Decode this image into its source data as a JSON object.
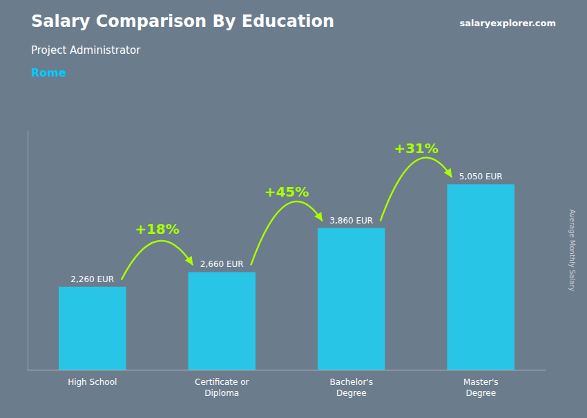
{
  "chart_data": {
    "type": "bar",
    "title": "Salary Comparison By Education",
    "subtitle": "Project Administrator",
    "ylabel": "Average Monthly Salary",
    "categories": [
      "High School",
      "Certificate or\nDiploma",
      "Bachelor's\nDegree",
      "Master's\nDegree"
    ],
    "values": [
      2260,
      2660,
      3860,
      5050
    ],
    "value_labels": [
      "2,260 EUR",
      "2,660 EUR",
      "3,860 EUR",
      "5,050 EUR"
    ],
    "data_labels": true,
    "color": "#29c5e6",
    "ylim": [
      0,
      6500
    ],
    "tick_labels": "x",
    "grid": false,
    "annotations": [
      {
        "text": "Rome"
      },
      {
        "text": "salaryexplorer.com"
      },
      {
        "text": "+18%",
        "from": "High School",
        "to": "Certificate or\nDiploma"
      },
      {
        "text": "+45%",
        "from": "Certificate or\nDiploma",
        "to": "Bachelor's\nDegree"
      },
      {
        "text": "+31%",
        "from": "Bachelor's\nDegree",
        "to": "Master's\nDegree"
      }
    ]
  }
}
